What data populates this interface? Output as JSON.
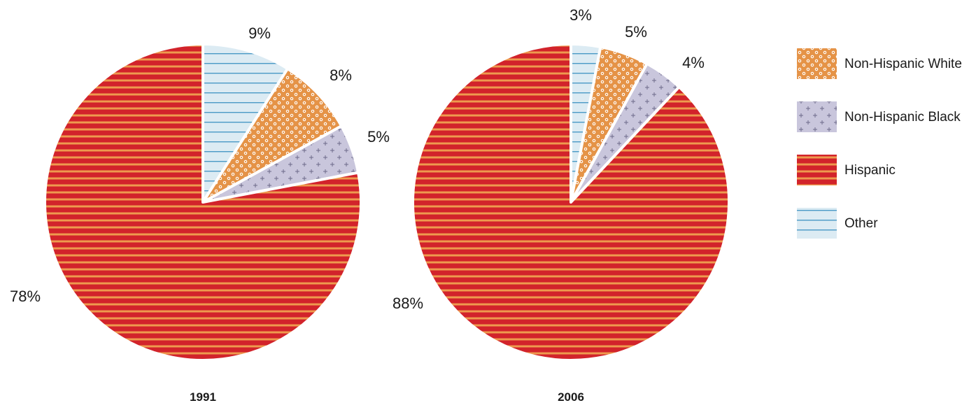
{
  "colors": {
    "Non-Hispanic White": {
      "fill": "#e59347",
      "pattern": "white-circles"
    },
    "Non-Hispanic Black": {
      "fill": "#c9c6dc",
      "pattern": "plus-marks"
    },
    "Hispanic": {
      "fill": "#d2232b",
      "pattern": "orange-stripes"
    },
    "Other": {
      "fill": "#dcebf3",
      "pattern": "blue-lines"
    }
  },
  "legend": {
    "placement": "right",
    "items": [
      "Non-Hispanic White",
      "Non-Hispanic Black",
      "Hispanic",
      "Other"
    ]
  },
  "chart_data": [
    {
      "type": "pie",
      "title": "1991",
      "slices": [
        {
          "name": "Other",
          "value": 9,
          "label": "9%"
        },
        {
          "name": "Non-Hispanic White",
          "value": 8,
          "label": "8%"
        },
        {
          "name": "Non-Hispanic Black",
          "value": 5,
          "label": "5%"
        },
        {
          "name": "Hispanic",
          "value": 78,
          "label": "78%"
        }
      ]
    },
    {
      "type": "pie",
      "title": "2006",
      "slices": [
        {
          "name": "Other",
          "value": 3,
          "label": "3%"
        },
        {
          "name": "Non-Hispanic White",
          "value": 5,
          "label": "5%"
        },
        {
          "name": "Non-Hispanic Black",
          "value": 4,
          "label": "4%"
        },
        {
          "name": "Hispanic",
          "value": 88,
          "label": "88%"
        }
      ]
    }
  ]
}
